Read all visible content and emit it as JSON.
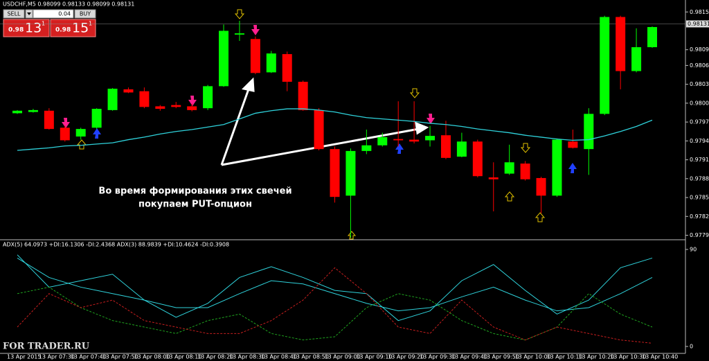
{
  "chart_data": [
    {
      "type": "candlestick",
      "title": "USDCHF,M5 0.98099 0.98133 0.98099 0.98131",
      "categories": [
        "13 Apr 2015",
        null,
        "13 Apr 07:30",
        null,
        "13 Apr 07:40",
        null,
        "13 Apr 07:50",
        null,
        "13 Apr 08:00",
        null,
        "13 Apr 08:10",
        null,
        "13 Apr 08:20",
        null,
        "13 Apr 08:30",
        null,
        "13 Apr 08:40",
        null,
        "13 Apr 08:50",
        null,
        "13 Apr 09:00",
        null,
        "13 Apr 09:10",
        null,
        "13 Apr 09:20",
        null,
        "13 Apr 09:30",
        null,
        "13 Apr 09:40",
        null,
        "13 Apr 09:50",
        null,
        "13 Apr 10:00",
        null,
        "13 Apr 10:10",
        null,
        "13 Apr 10:20",
        null,
        "13 Apr 10:30",
        null,
        "13 Apr 10:40"
      ],
      "open": [
        0.97989,
        0.97991,
        0.97993,
        0.97966,
        0.97952,
        0.97966,
        0.97994,
        0.98027,
        0.98024,
        0.98,
        0.98002,
        0.98,
        0.97997,
        0.98032,
        0.98114,
        0.98107,
        0.98054,
        0.98083,
        0.98039,
        0.97994,
        0.97932,
        0.97858,
        0.97929,
        0.97938,
        0.97948,
        0.97947,
        0.97946,
        0.97954,
        0.9792,
        0.97944,
        0.97887,
        0.97893,
        0.97909,
        0.97886,
        0.97858,
        0.97944,
        0.97932,
        0.97988,
        0.98142,
        0.98056,
        0.98094
      ],
      "high": [
        0.97994,
        0.97996,
        0.97997,
        0.97969,
        0.97966,
        0.97997,
        0.98029,
        0.9803,
        0.9803,
        0.98002,
        0.98007,
        0.98004,
        0.98034,
        0.9813,
        0.98136,
        0.98111,
        0.98088,
        0.98087,
        0.98041,
        0.97997,
        0.97936,
        0.97933,
        0.97963,
        0.97958,
        0.98008,
        0.98008,
        0.97969,
        0.97977,
        0.97958,
        0.97947,
        0.97911,
        0.97939,
        0.97913,
        0.97888,
        0.97949,
        0.97963,
        0.97997,
        0.98144,
        0.98144,
        0.98124,
        0.98127
      ],
      "low": [
        0.97988,
        0.9799,
        0.97963,
        0.97944,
        0.97947,
        0.97964,
        0.97993,
        0.98021,
        0.97997,
        0.97993,
        0.97997,
        0.97992,
        0.97994,
        0.98031,
        0.98104,
        0.98051,
        0.98053,
        0.98024,
        0.97993,
        0.9793,
        0.97847,
        0.97791,
        0.97924,
        0.97936,
        0.97936,
        0.97941,
        0.97936,
        0.97916,
        0.97919,
        0.97887,
        0.97833,
        0.97891,
        0.97882,
        0.9783,
        0.97856,
        0.97933,
        0.97891,
        0.97986,
        0.98027,
        0.98054,
        0.98093
      ],
      "close": [
        0.97993,
        0.97994,
        0.97964,
        0.97946,
        0.97964,
        0.97996,
        0.98028,
        0.98022,
        0.97999,
        0.97996,
        0.97999,
        0.97994,
        0.98032,
        0.9812,
        0.98116,
        0.98053,
        0.98084,
        0.98039,
        0.97994,
        0.97932,
        0.97856,
        0.97929,
        0.97938,
        0.97951,
        0.97946,
        0.97944,
        0.97953,
        0.97918,
        0.97944,
        0.97889,
        0.97884,
        0.97911,
        0.97884,
        0.97858,
        0.97947,
        0.97934,
        0.97988,
        0.98142,
        0.98056,
        0.98094,
        0.98126
      ],
      "up_color": "#00ff00",
      "down_color": "#ff0000",
      "series": [
        {
          "color": "#2fd3dc",
          "values": [
            0.9793,
            0.97932,
            0.97934,
            0.97937,
            0.97938,
            0.9794,
            0.97942,
            0.97947,
            0.97951,
            0.97956,
            0.9796,
            0.97963,
            0.97967,
            0.97971,
            0.9798,
            0.97989,
            0.97993,
            0.97996,
            0.97996,
            0.97994,
            0.97991,
            0.97986,
            0.97982,
            0.9798,
            0.97978,
            0.97976,
            0.97973,
            0.97971,
            0.97968,
            0.97964,
            0.97961,
            0.97958,
            0.97954,
            0.97951,
            0.97948,
            0.97946,
            0.97947,
            0.97953,
            0.9796,
            0.97968,
            0.97978
          ]
        }
      ],
      "last_price": 0.98131,
      "ylim": [
        0.97789,
        0.98169
      ],
      "yticks": [
        {
          "value": 0.9815,
          "label": "0.98150"
        },
        {
          "value": 0.9809,
          "label": "0.98090"
        },
        0.98065,
        0.98035,
        0.98005,
        0.97975,
        0.97945,
        0.97915,
        0.97885,
        0.97855,
        0.97825,
        0.97795
      ],
      "annotations": [
        "Во время формирования этих свечей",
        "покупаем PUT-опцион"
      ]
    },
    {
      "type": "line",
      "title": "ADX(5) 64.0973 +DI:16.1306 -DI:2.4368 ADX(3) 88.9839 +DI:10.4624 -DI:0.3908",
      "series": [
        {
          "color": "#2fd3dc",
          "dash": false,
          "values": [
            85,
            55,
            61,
            67,
            43,
            27,
            40,
            64,
            74,
            64,
            52,
            49,
            24,
            33,
            61,
            76,
            52,
            30,
            43,
            73,
            82
          ]
        },
        {
          "color": "#2fd3dc",
          "dash": false,
          "values": [
            82,
            64,
            55,
            49,
            43,
            36,
            36,
            49,
            61,
            58,
            49,
            40,
            33,
            36,
            46,
            55,
            43,
            33,
            36,
            49,
            64
          ]
        },
        {
          "color": "#1fa51f",
          "dash": true,
          "values": [
            49,
            55,
            36,
            24,
            18,
            12,
            24,
            30,
            12,
            6,
            9,
            36,
            49,
            43,
            24,
            12,
            6,
            18,
            49,
            30,
            18
          ]
        },
        {
          "color": "#c81e1e",
          "dash": true,
          "values": [
            18,
            49,
            36,
            43,
            24,
            18,
            12,
            12,
            24,
            43,
            73,
            49,
            18,
            12,
            43,
            18,
            6,
            18,
            12,
            6,
            3
          ]
        }
      ],
      "ylim": [
        0,
        90
      ],
      "yticks": [
        0,
        90
      ]
    }
  ],
  "trade_panel": {
    "sell": "SELL",
    "lot": "0.04",
    "buy": "BUY",
    "bid": {
      "big": "0.98",
      "pips": "13",
      "frac": "1"
    },
    "ask": {
      "big": "0.98",
      "pips": "15",
      "frac": "1"
    }
  },
  "watermark": "FOR TRADER.RU"
}
